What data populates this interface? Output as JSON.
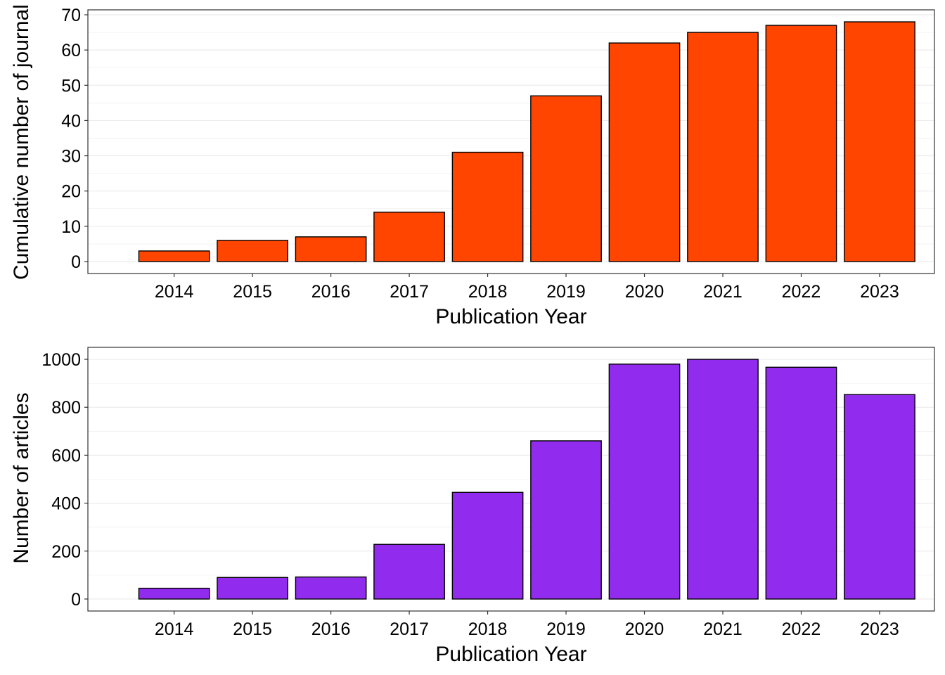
{
  "colors": {
    "top_bar_fill": "#FF4500",
    "bottom_bar_fill": "#912CEE",
    "bar_stroke": "#000000",
    "gridline": "#EBEBEB",
    "panel_border": "#333333"
  },
  "chart_data": [
    {
      "type": "bar",
      "categories": [
        "2014",
        "2015",
        "2016",
        "2017",
        "2018",
        "2019",
        "2020",
        "2021",
        "2022",
        "2023"
      ],
      "values": [
        3,
        6,
        7,
        14,
        31,
        47,
        62,
        65,
        67,
        68
      ],
      "xlabel": "Publication Year",
      "ylabel": "Cumulative number of journal",
      "ylim": [
        -3.4,
        71.4
      ],
      "yticks": [
        0,
        10,
        20,
        30,
        40,
        50,
        60,
        70
      ],
      "ytick_labels": [
        "0",
        "10",
        "20",
        "30",
        "40",
        "50",
        "60",
        "70"
      ],
      "grid": true,
      "legend": "none"
    },
    {
      "type": "bar",
      "categories": [
        "2014",
        "2015",
        "2016",
        "2017",
        "2018",
        "2019",
        "2020",
        "2021",
        "2022",
        "2023"
      ],
      "values": [
        45,
        90,
        92,
        228,
        445,
        660,
        980,
        1000,
        967,
        853
      ],
      "xlabel": "Publication Year",
      "ylabel": "Number of articles",
      "ylim": [
        -50,
        1050
      ],
      "yticks": [
        0,
        200,
        400,
        600,
        800,
        1000
      ],
      "ytick_labels": [
        "0",
        "200",
        "400",
        "600",
        "800",
        "1000"
      ],
      "grid": true,
      "legend": "none"
    }
  ]
}
